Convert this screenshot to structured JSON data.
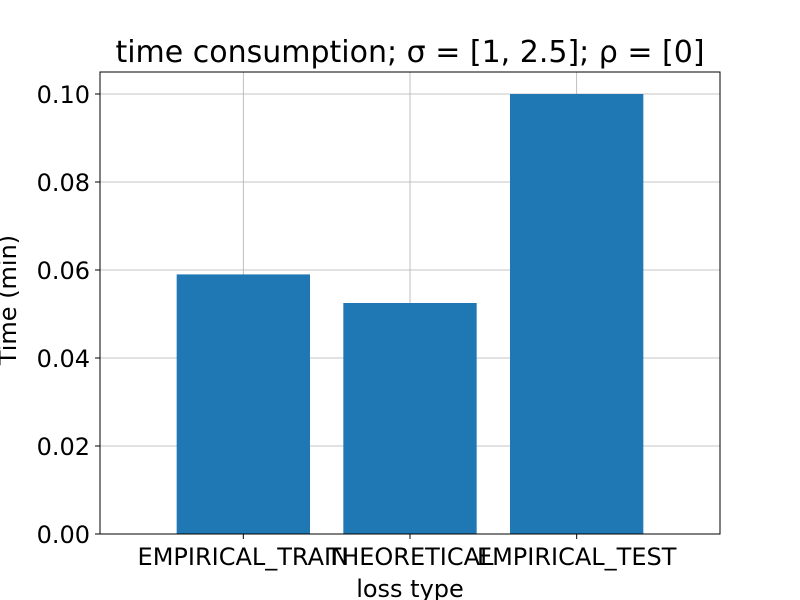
{
  "chart_data": {
    "type": "bar",
    "title": "time consumption;  σ = [1, 2.5];  ρ = [0]",
    "xlabel": "loss type",
    "ylabel": "Time (min)",
    "categories": [
      "EMPIRICAL_TRAIN",
      "THEORETICAL",
      "EMPIRICAL_TEST"
    ],
    "values": [
      0.059,
      0.0525,
      0.1
    ],
    "ylim": [
      0,
      0.105
    ],
    "yticks": [
      "0.00",
      "0.02",
      "0.04",
      "0.06",
      "0.08",
      "0.10"
    ],
    "grid": true,
    "bar_color": "#1f77b4"
  }
}
